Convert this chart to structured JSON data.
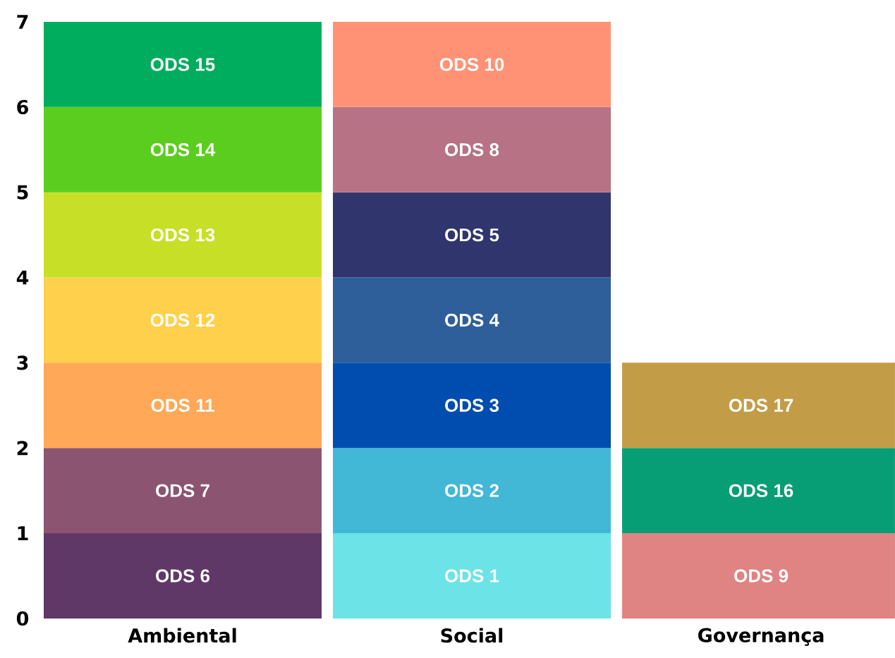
{
  "chart_data": {
    "type": "bar",
    "stacked": true,
    "categories": [
      "Ambiental",
      "Social",
      "Governança"
    ],
    "ylim": [
      0,
      7
    ],
    "yticks": [
      0,
      1,
      2,
      3,
      4,
      5,
      6,
      7
    ],
    "series": [
      {
        "values": [
          1,
          1,
          1
        ],
        "colors": [
          "#603868",
          "#6be3e7",
          "#e08383"
        ],
        "value_labels": [
          "ODS 6",
          "ODS 1",
          "ODS 9"
        ]
      },
      {
        "values": [
          1,
          1,
          1
        ],
        "colors": [
          "#8b5572",
          "#42b7d6",
          "#089e75"
        ],
        "value_labels": [
          "ODS 7",
          "ODS 2",
          "ODS 16"
        ]
      },
      {
        "values": [
          1,
          1,
          1
        ],
        "colors": [
          "#ffa858",
          "#004daf",
          "#c39c47"
        ],
        "value_labels": [
          "ODS 11",
          "ODS 3",
          "ODS 17"
        ]
      },
      {
        "values": [
          1,
          1,
          null
        ],
        "colors": [
          "#ffd04b",
          "#2f5f9a",
          null
        ],
        "value_labels": [
          "ODS 12",
          "ODS 4",
          null
        ]
      },
      {
        "values": [
          1,
          1,
          null
        ],
        "colors": [
          "#c8df27",
          "#31356d",
          null
        ],
        "value_labels": [
          "ODS 13",
          "ODS 5",
          null
        ]
      },
      {
        "values": [
          1,
          1,
          null
        ],
        "colors": [
          "#5bcd1f",
          "#b77285",
          null
        ],
        "value_labels": [
          "ODS 14",
          "ODS 8",
          null
        ]
      },
      {
        "values": [
          1,
          1,
          null
        ],
        "colors": [
          "#00ac5e",
          "#ff9275",
          null
        ],
        "value_labels": [
          "ODS 15",
          "ODS 10",
          null
        ]
      }
    ]
  }
}
